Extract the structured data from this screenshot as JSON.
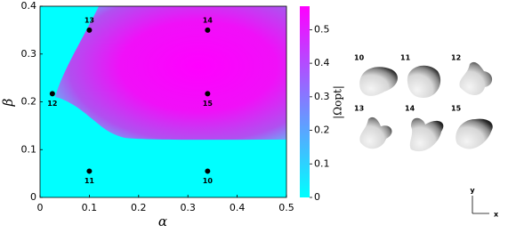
{
  "chart_data": {
    "type": "heatmap",
    "x_label": "α",
    "y_label": "β",
    "xlim": [
      0,
      0.5
    ],
    "ylim": [
      0,
      0.4
    ],
    "xticks": [
      0,
      0.1,
      0.2,
      0.3,
      0.4,
      0.5
    ],
    "yticks": [
      0,
      0.1,
      0.2,
      0.3,
      0.4
    ],
    "points": {
      "x": [
        0.34,
        0.1,
        0.025,
        0.1,
        0.34,
        0.34
      ],
      "y": [
        0.055,
        0.055,
        0.217,
        0.35,
        0.35,
        0.217
      ],
      "labels": [
        "10",
        "11",
        "12",
        "13",
        "14",
        "15"
      ],
      "color": "#000000"
    },
    "colorbar": {
      "label": "|Ωopt|",
      "lim": [
        0,
        0.57
      ],
      "ticks": [
        0,
        0.1,
        0.2,
        0.3,
        0.4,
        0.5
      ],
      "colors": [
        "#00ffff",
        "#ff00ff"
      ]
    },
    "shapes": {
      "labels": [
        "10",
        "11",
        "12",
        "13",
        "14",
        "15"
      ],
      "axis_labels": [
        "y",
        "x"
      ]
    }
  }
}
